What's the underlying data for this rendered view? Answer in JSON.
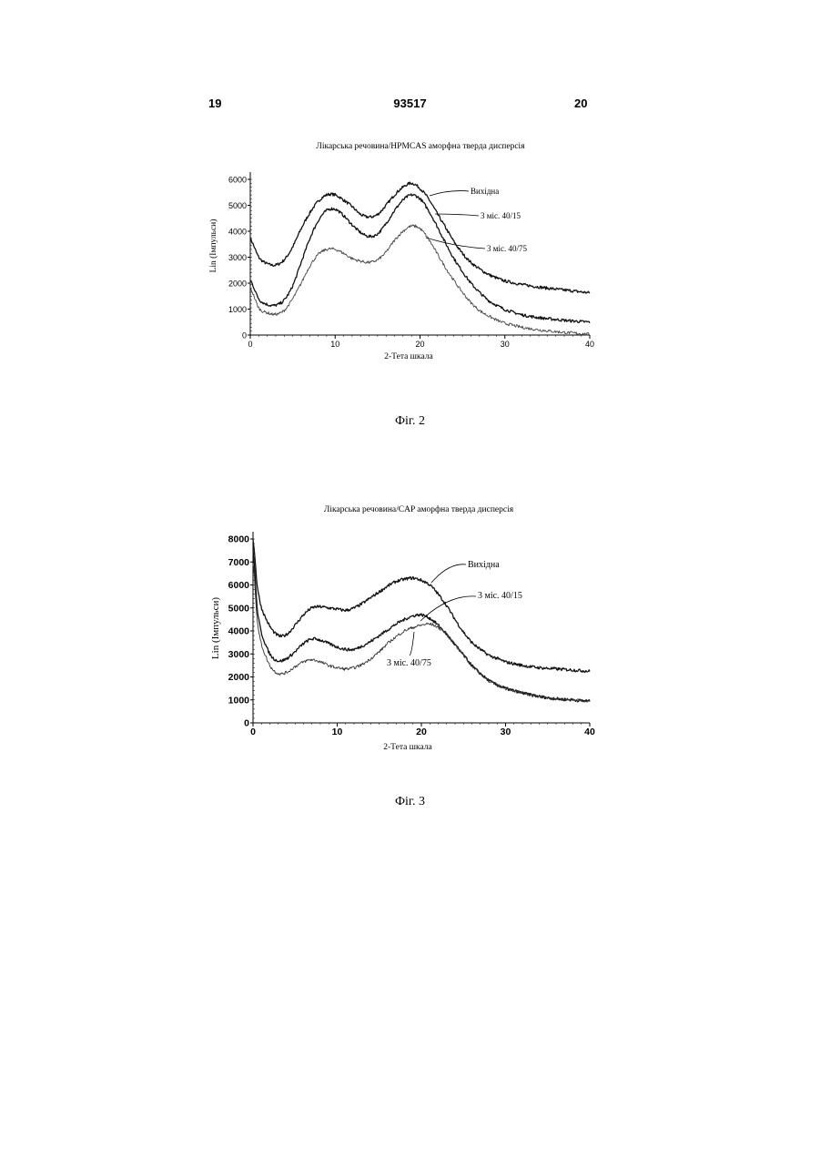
{
  "header": {
    "left": "19",
    "center": "93517",
    "right": "20"
  },
  "figures": [
    {
      "caption": "Фіг. 2",
      "chart_data": {
        "type": "line",
        "title": "Лікарська речовина/HPMCAS аморфна тверда дисперсія",
        "xlabel": "2-Тета шкала",
        "ylabel": "Lin (Імпульси)",
        "xlim": [
          0,
          40
        ],
        "ylim": [
          0,
          6000
        ],
        "xticks": [
          0,
          10,
          20,
          30,
          40
        ],
        "yticks": [
          0,
          1000,
          2000,
          3000,
          4000,
          5000,
          6000
        ],
        "grid": false,
        "legend": "inline labels with leader lines",
        "series": [
          {
            "name": "Вихідна",
            "x": [
              0,
              1,
              2,
              3,
              4,
              5,
              6,
              7,
              8,
              9,
              10,
              11,
              12,
              13,
              14,
              15,
              16,
              17,
              18,
              19,
              20,
              21,
              22,
              23,
              24,
              25,
              26,
              27,
              28,
              29,
              30,
              32,
              34,
              36,
              38,
              40
            ],
            "y": [
              3700,
              3000,
              2750,
              2700,
              2900,
              3400,
              4100,
              4700,
              5150,
              5400,
              5400,
              5200,
              4950,
              4650,
              4550,
              4650,
              5000,
              5400,
              5700,
              5850,
              5650,
              5250,
              4700,
              4150,
              3600,
              3150,
              2800,
              2550,
              2350,
              2200,
              2080,
              1950,
              1850,
              1770,
              1700,
              1630
            ]
          },
          {
            "name": "3 міс. 40/15",
            "x": [
              0,
              1,
              2,
              3,
              4,
              5,
              6,
              7,
              8,
              9,
              10,
              11,
              12,
              13,
              14,
              15,
              16,
              17,
              18,
              19,
              20,
              21,
              22,
              23,
              24,
              25,
              26,
              27,
              28,
              29,
              30,
              32,
              34,
              36,
              38,
              40
            ],
            "y": [
              2100,
              1400,
              1180,
              1150,
              1350,
              1900,
              2800,
              3700,
              4400,
              4800,
              4850,
              4600,
              4250,
              3950,
              3800,
              3900,
              4300,
              4800,
              5200,
              5400,
              5250,
              4800,
              4200,
              3550,
              2950,
              2450,
              2000,
              1650,
              1350,
              1150,
              980,
              780,
              670,
              600,
              540,
              500
            ]
          },
          {
            "name": "3 міс. 40/75",
            "x": [
              0,
              1,
              2,
              3,
              4,
              5,
              6,
              7,
              8,
              9,
              10,
              11,
              12,
              13,
              14,
              15,
              16,
              17,
              18,
              19,
              20,
              21,
              22,
              23,
              24,
              25,
              26,
              27,
              28,
              29,
              30,
              32,
              34,
              36,
              38,
              40
            ],
            "y": [
              1800,
              1050,
              860,
              800,
              950,
              1400,
              2000,
              2650,
              3100,
              3300,
              3300,
              3150,
              2950,
              2850,
              2800,
              2900,
              3200,
              3650,
              4000,
              4200,
              4100,
              3700,
              3150,
              2600,
              2100,
              1650,
              1250,
              950,
              750,
              580,
              450,
              300,
              200,
              130,
              80,
              30
            ]
          }
        ]
      }
    },
    {
      "caption": "Фіг. 3",
      "chart_data": {
        "type": "line",
        "title": "Лікарська речовина/CAP аморфна тверда дисперсія",
        "xlabel": "2-Тета шкала",
        "ylabel": "Lin (Імпульси)",
        "xlim": [
          0,
          40
        ],
        "ylim": [
          0,
          8000
        ],
        "xticks": [
          0,
          10,
          20,
          30,
          40
        ],
        "yticks": [
          0,
          1000,
          2000,
          3000,
          4000,
          5000,
          6000,
          7000,
          8000
        ],
        "grid": false,
        "legend": "inline labels with leader lines",
        "series": [
          {
            "name": "Вихідна",
            "x": [
              0,
              0.5,
              1,
              2,
              3,
              4,
              5,
              6,
              7,
              8,
              9,
              10,
              11,
              12,
              13,
              14,
              15,
              16,
              17,
              18,
              19,
              20,
              21,
              22,
              23,
              24,
              25,
              26,
              27,
              28,
              29,
              30,
              32,
              34,
              36,
              38,
              40
            ],
            "y": [
              8000,
              6000,
              5000,
              4200,
              3800,
              3850,
              4250,
              4700,
              5000,
              5050,
              5000,
              4950,
              4900,
              5000,
              5200,
              5450,
              5700,
              5950,
              6150,
              6250,
              6300,
              6200,
              6000,
              5600,
              5100,
              4500,
              3950,
              3500,
              3200,
              2950,
              2800,
              2650,
              2500,
              2400,
              2350,
              2300,
              2250
            ]
          },
          {
            "name": "3 міс. 40/15",
            "x": [
              0,
              0.5,
              1,
              2,
              3,
              4,
              5,
              6,
              7,
              8,
              9,
              10,
              11,
              12,
              13,
              14,
              15,
              16,
              17,
              18,
              19,
              20,
              21,
              22,
              23,
              24,
              25,
              26,
              27,
              28,
              29,
              30,
              32,
              34,
              36,
              38,
              40
            ],
            "y": [
              7500,
              5000,
              3900,
              3000,
              2700,
              2800,
              3100,
              3450,
              3650,
              3600,
              3450,
              3300,
              3200,
              3200,
              3350,
              3550,
              3800,
              4050,
              4300,
              4500,
              4650,
              4700,
              4550,
              4250,
              3850,
              3400,
              2950,
              2500,
              2150,
              1850,
              1650,
              1500,
              1300,
              1150,
              1050,
              1000,
              950
            ]
          },
          {
            "name": "3 міс. 40/75",
            "x": [
              0,
              0.5,
              1,
              2,
              3,
              4,
              5,
              6,
              7,
              8,
              9,
              10,
              11,
              12,
              13,
              14,
              15,
              16,
              17,
              18,
              19,
              20,
              21,
              22,
              23,
              24,
              25,
              26,
              27,
              28,
              29,
              30,
              32,
              34,
              36,
              38,
              40
            ],
            "y": [
              7000,
              4500,
              3400,
              2500,
              2150,
              2200,
              2450,
              2650,
              2750,
              2650,
              2500,
              2400,
              2350,
              2400,
              2550,
              2800,
              3100,
              3450,
              3750,
              4000,
              4150,
              4250,
              4300,
              4150,
              3850,
              3400,
              2950,
              2500,
              2150,
              1850,
              1650,
              1500,
              1300,
              1150,
              1050,
              1000,
              950
            ]
          }
        ]
      }
    }
  ]
}
